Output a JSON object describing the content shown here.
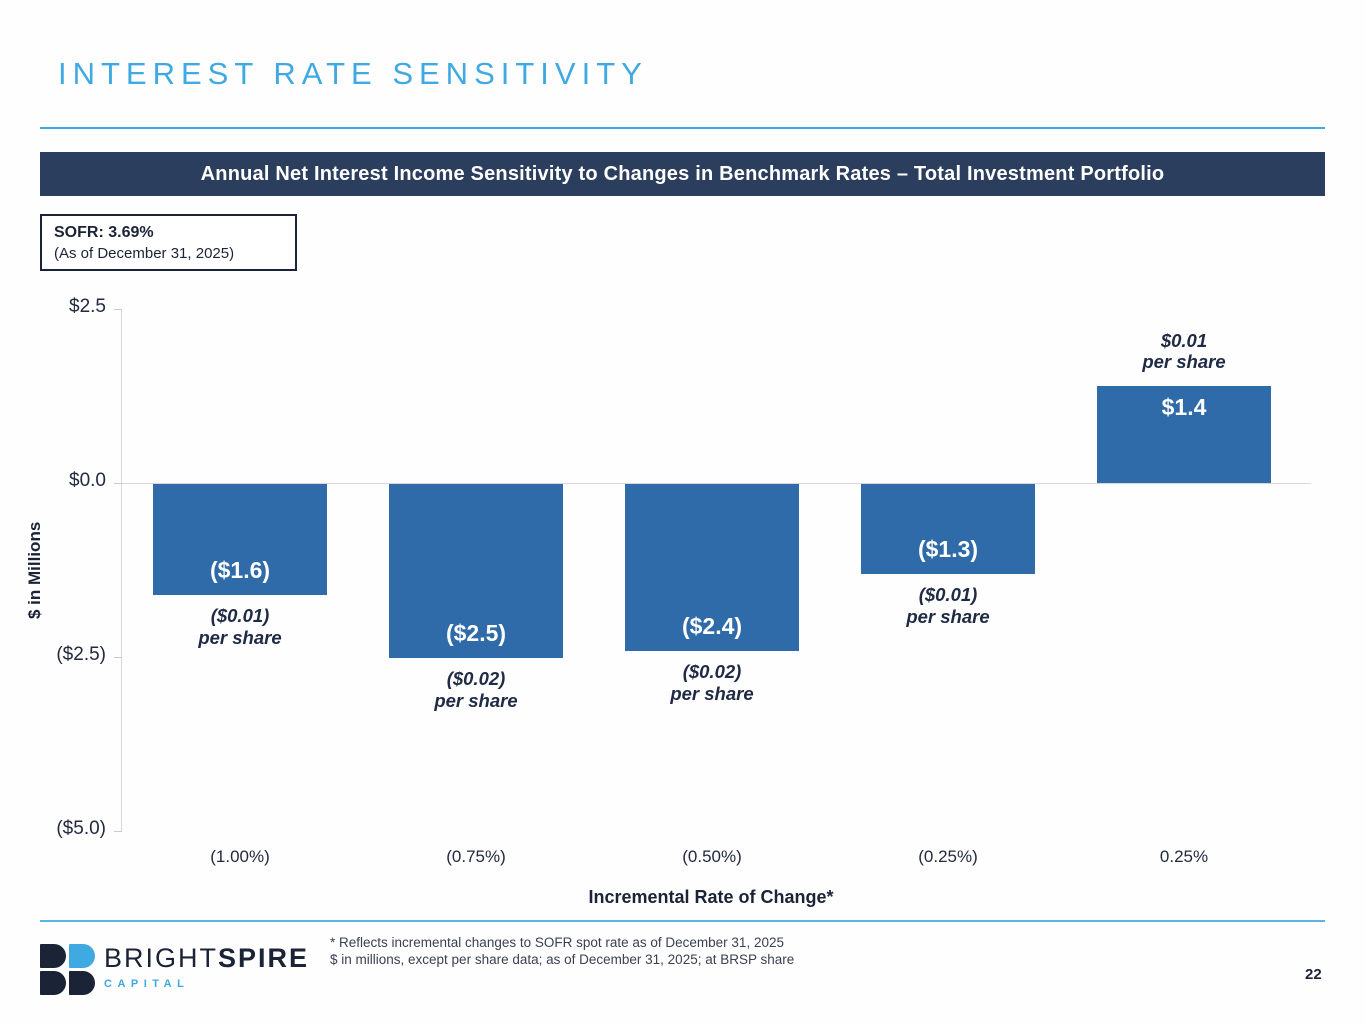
{
  "slide": {
    "title": "INTEREST RATE SENSITIVITY",
    "banner": "Annual Net Interest Income Sensitivity to Changes in Benchmark Rates – Total Investment Portfolio",
    "sofr_box": {
      "line1": "SOFR: 3.69%",
      "line2": "(As of December 31, 2025)"
    },
    "page_number": "22"
  },
  "chart_data": {
    "type": "bar",
    "title": "Annual Net Interest Income Sensitivity to Changes in Benchmark Rates – Total Investment Portfolio",
    "categories": [
      "(1.00%)",
      "(0.75%)",
      "(0.50%)",
      "(0.25%)",
      "0.25%"
    ],
    "values": [
      -1.6,
      -2.5,
      -2.4,
      -1.3,
      1.4
    ],
    "bar_value_labels": [
      "($1.6)",
      "($2.5)",
      "($2.4)",
      "($1.3)",
      "$1.4"
    ],
    "per_share_labels": [
      "($0.01)\nper share",
      "($0.02)\nper share",
      "($0.02)\nper share",
      "($0.01)\nper share",
      "$0.01\nper share"
    ],
    "xlabel": "Incremental Rate of Change*",
    "ylabel": "$ in Millions",
    "ylim": [
      -5.0,
      2.5
    ],
    "yticks": [
      {
        "value": 2.5,
        "label": "$2.5"
      },
      {
        "value": 0.0,
        "label": "$0.0"
      },
      {
        "value": -2.5,
        "label": "($2.5)"
      },
      {
        "value": -5.0,
        "label": "($5.0)"
      }
    ],
    "bar_color": "#2E6BA8",
    "grid": "zero baseline only",
    "legend_position": "none"
  },
  "footer": {
    "logo": {
      "brand_part1": "BRIGHT",
      "brand_part2": "SPIRE",
      "subtext": "CAPITAL"
    },
    "footnote_line1": "* Reflects incremental changes to SOFR spot rate as of December 31, 2025",
    "footnote_line2": "$ in millions, except per share data; as of December 31, 2025; at BRSP share"
  },
  "colors": {
    "accent_blue": "#3FA9E1",
    "banner_navy": "#2C3E5E",
    "bar_blue": "#2E6BA8",
    "text_navy": "#1B2337",
    "axis_gray": "#D8D8D8"
  }
}
